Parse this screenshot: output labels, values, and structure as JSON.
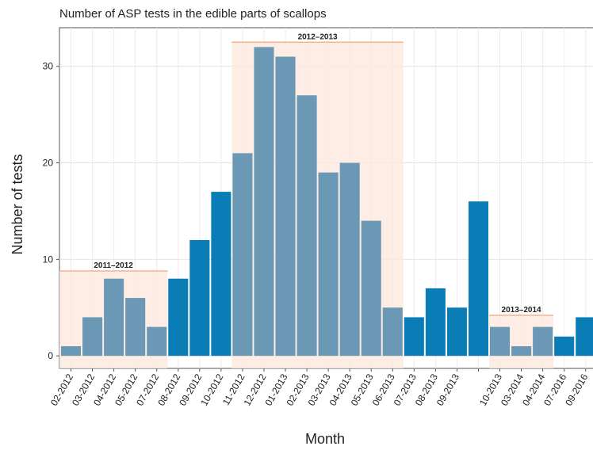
{
  "chart_data": {
    "type": "bar",
    "title": "Number of ASP tests in the edible parts of scallops",
    "x_label": "Month",
    "y_label": "Number of tests",
    "categories": [
      "02-2012",
      "03-2012",
      "04-2012",
      "05-2012",
      "07-2012",
      "08-2012",
      "09-2012",
      "10-2012",
      "11-2012",
      "12-2012",
      "01-2013",
      "02-2013",
      "03-2013",
      "04-2013",
      "05-2013",
      "06-2013",
      "07-2013",
      "08-2013",
      "09-2013",
      null,
      "10-2013",
      "03-2014",
      "04-2014",
      "07-2016",
      "09-2016"
    ],
    "values": [
      1,
      4,
      8,
      6,
      3,
      8,
      12,
      17,
      21,
      32,
      31,
      27,
      19,
      20,
      14,
      5,
      4,
      7,
      5,
      16,
      3,
      1,
      3,
      2,
      4
    ],
    "colors": [
      "#6b98b5",
      "#6b98b5",
      "#6b98b5",
      "#6b98b5",
      "#6b98b5",
      "#0a7cb6",
      "#0a7cb6",
      "#0a7cb6",
      "#6b98b5",
      "#6b98b5",
      "#6b98b5",
      "#6b98b5",
      "#6b98b5",
      "#6b98b5",
      "#6b98b5",
      "#6b98b5",
      "#0a7cb6",
      "#0a7cb6",
      "#0a7cb6",
      "#0a7cb6",
      "#6b98b5",
      "#6b98b5",
      "#6b98b5",
      "#0a7cb6",
      "#0a7cb6"
    ],
    "ylim": [
      -1.3,
      34
    ],
    "yticks": [
      0,
      10,
      20,
      30
    ],
    "grid": true,
    "seasons": [
      {
        "label": "2011–2012",
        "from": "02-2012",
        "to": "07-2012",
        "top": 8.8
      },
      {
        "label": "2012–2013",
        "from": "11-2012",
        "to": "06-2013",
        "top": 32.5
      },
      {
        "label": "2013–2014",
        "from": "10-2013",
        "to": "04-2014",
        "top": 4.2
      }
    ]
  }
}
